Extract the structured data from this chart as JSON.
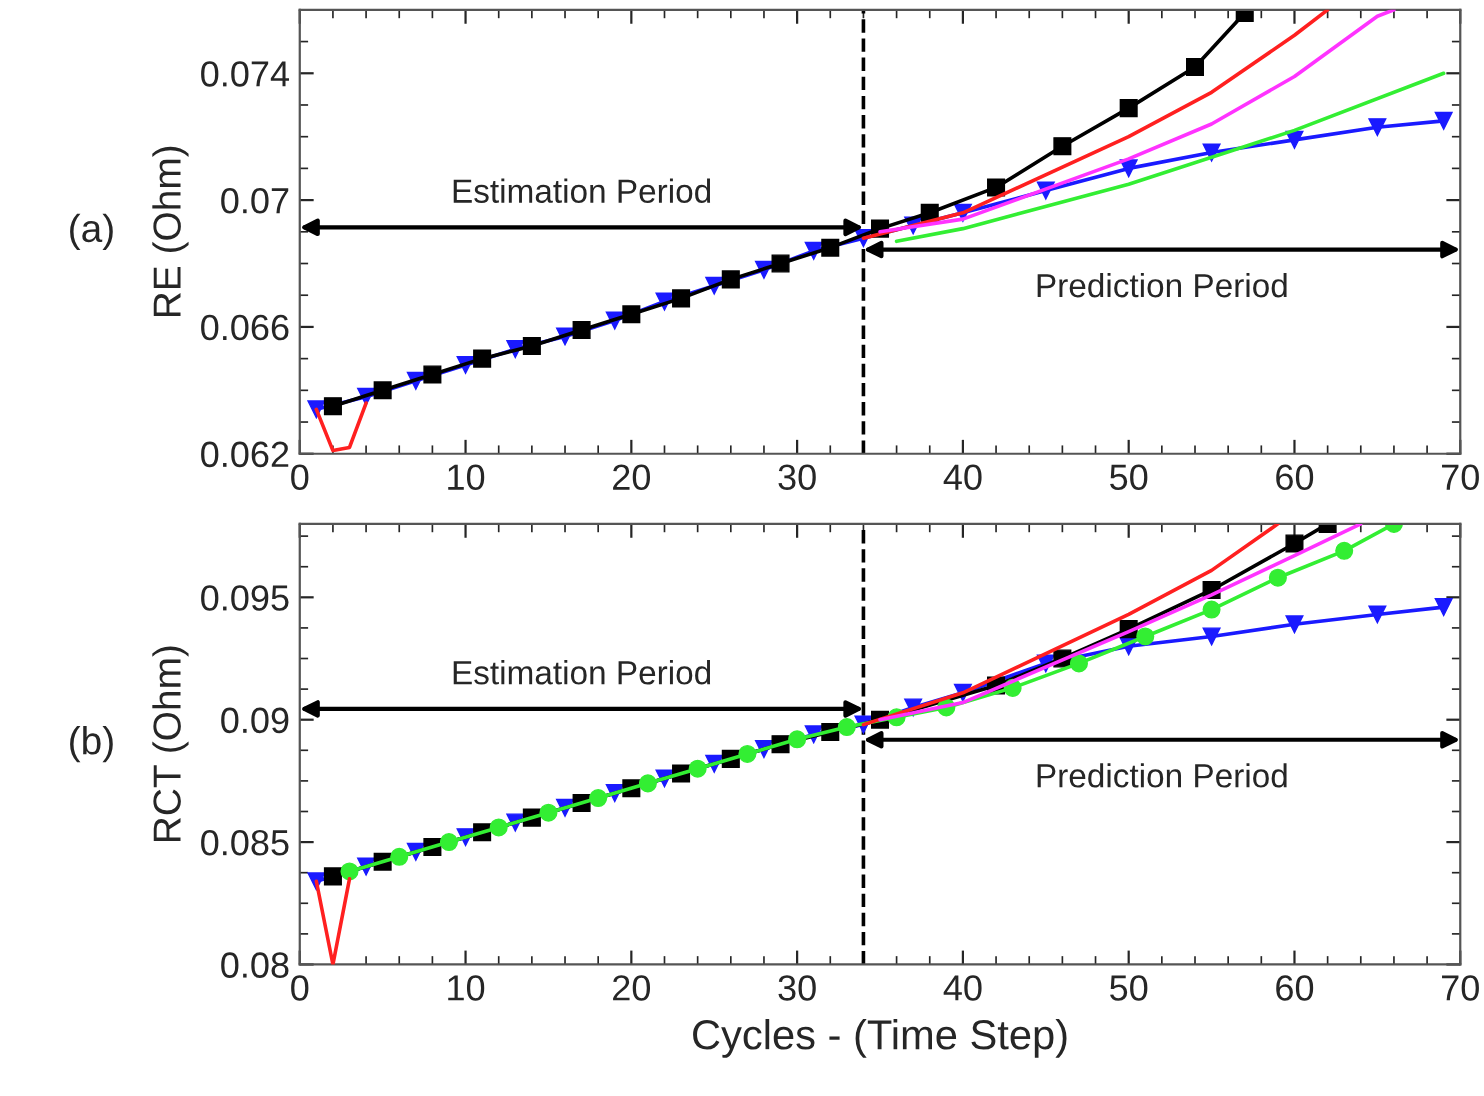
{
  "chart_data": [
    {
      "type": "line",
      "ylabel": "RE (Ohm)",
      "xlim": [
        0,
        70
      ],
      "xticks": [
        0,
        10,
        20,
        30,
        40,
        50,
        60,
        70
      ],
      "ylim": [
        0.062,
        0.076
      ],
      "yticks": [
        0.062,
        0.066,
        0.07,
        0.074
      ],
      "grid": false,
      "legend": false,
      "ref_lines": [
        {
          "axis": "x",
          "value": 34,
          "color": "#000000",
          "line_style": "dashed"
        }
      ],
      "annotations": [
        "(a)",
        "Estimation Period",
        "Prediction Period"
      ],
      "series": [
        {
          "color": "#1a1aff",
          "marker": "triangle",
          "x": [
            1,
            4,
            7,
            10,
            13,
            16,
            19,
            22,
            25,
            28,
            31,
            34,
            37,
            40,
            45,
            50,
            55,
            60,
            65,
            69
          ],
          "values": [
            0.0634,
            0.0638,
            0.0643,
            0.0648,
            0.0653,
            0.0657,
            0.0662,
            0.0668,
            0.0673,
            0.0678,
            0.0684,
            0.0688,
            0.0692,
            0.0696,
            0.0703,
            0.071,
            0.0715,
            0.0719,
            0.0723,
            0.0725
          ]
        },
        {
          "color": "#000000",
          "marker": "square",
          "x": [
            2,
            5,
            8,
            11,
            14,
            17,
            20,
            23,
            26,
            29,
            32,
            35,
            38,
            42,
            46,
            50,
            54,
            57
          ],
          "values": [
            0.0635,
            0.064,
            0.0645,
            0.065,
            0.0654,
            0.0659,
            0.0664,
            0.0669,
            0.0675,
            0.068,
            0.0685,
            0.0691,
            0.0696,
            0.0704,
            0.0717,
            0.0729,
            0.0742,
            0.0759
          ]
        },
        {
          "color": "#ff2020",
          "marker": "none",
          "x": [
            1,
            2,
            3,
            4,
            5,
            34,
            40,
            50,
            55,
            60,
            62
          ],
          "values": [
            0.0634,
            0.0621,
            0.0622,
            0.0636,
            null,
            0.0688,
            0.0696,
            0.072,
            0.0734,
            0.0752,
            0.076
          ]
        },
        {
          "color": "#ff33ff",
          "marker": "none",
          "x": [
            35,
            40,
            50,
            55,
            60,
            65,
            66
          ],
          "values": [
            0.069,
            0.0694,
            0.0713,
            0.0724,
            0.0739,
            0.0758,
            0.076
          ]
        },
        {
          "color": "#33ee33",
          "marker": "none",
          "x": [
            36,
            40,
            50,
            60,
            69
          ],
          "values": [
            0.0687,
            0.0691,
            0.0705,
            0.0722,
            0.074
          ]
        }
      ]
    },
    {
      "type": "line",
      "xlabel": "Cycles - (Time Step)",
      "ylabel": "RCT (Ohm)",
      "xlim": [
        0,
        70
      ],
      "xticks": [
        0,
        10,
        20,
        30,
        40,
        50,
        60,
        70
      ],
      "ylim": [
        0.08,
        0.098
      ],
      "yticks": [
        0.08,
        0.085,
        0.09,
        0.095
      ],
      "grid": false,
      "legend": false,
      "ref_lines": [
        {
          "axis": "x",
          "value": 34,
          "color": "#000000",
          "line_style": "dashed"
        }
      ],
      "annotations": [
        "(b)",
        "Estimation Period",
        "Prediction Period"
      ],
      "series": [
        {
          "color": "#1a1aff",
          "marker": "triangle",
          "x": [
            1,
            4,
            7,
            10,
            13,
            16,
            19,
            22,
            25,
            28,
            31,
            34,
            37,
            40,
            45,
            50,
            55,
            60,
            65,
            69
          ],
          "values": [
            0.0834,
            0.084,
            0.0846,
            0.0852,
            0.0858,
            0.0864,
            0.087,
            0.0876,
            0.0882,
            0.0888,
            0.0894,
            0.0898,
            0.0905,
            0.0911,
            0.0923,
            0.093,
            0.0934,
            0.0939,
            0.0943,
            0.0946
          ]
        },
        {
          "color": "#000000",
          "marker": "square",
          "x": [
            2,
            5,
            8,
            11,
            14,
            17,
            20,
            23,
            26,
            29,
            32,
            35,
            42,
            46,
            50,
            55,
            60,
            62
          ],
          "values": [
            0.0836,
            0.0842,
            0.0848,
            0.0854,
            0.086,
            0.0866,
            0.0872,
            0.0878,
            0.0884,
            0.089,
            0.0895,
            0.09,
            0.0914,
            0.0925,
            0.0937,
            0.0953,
            0.0972,
            0.098
          ]
        },
        {
          "color": "#ff2020",
          "marker": "none",
          "x": [
            1,
            2,
            3,
            4,
            34,
            40,
            50,
            55,
            59
          ],
          "values": [
            0.0834,
            0.08,
            0.0835,
            null,
            0.0898,
            0.0911,
            0.0943,
            0.0961,
            0.098
          ]
        },
        {
          "color": "#ff33ff",
          "marker": "none",
          "x": [
            35,
            40,
            50,
            55,
            60,
            64
          ],
          "values": [
            0.09,
            0.0907,
            0.0936,
            0.0951,
            0.0967,
            0.098
          ]
        },
        {
          "color": "#33ee33",
          "marker": "circle",
          "x": [
            3,
            6,
            9,
            12,
            15,
            18,
            21,
            24,
            27,
            30,
            33,
            36,
            39,
            43,
            47,
            51,
            55,
            59,
            63,
            66
          ],
          "values": [
            0.0838,
            0.0844,
            0.085,
            0.0856,
            0.0862,
            0.0868,
            0.0874,
            0.088,
            0.0886,
            0.0892,
            0.0897,
            0.0901,
            0.0905,
            0.0913,
            0.0923,
            0.0934,
            0.0945,
            0.0958,
            0.0969,
            0.098
          ]
        }
      ]
    }
  ]
}
